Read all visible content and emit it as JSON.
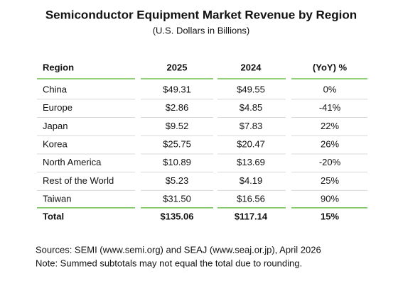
{
  "header": {
    "title": "Semiconductor Equipment Market Revenue by Region",
    "subtitle": "(U.S. Dollars in Billions)"
  },
  "table": {
    "columns": [
      "Region",
      "2025",
      "2024",
      "(YoY) %"
    ],
    "rows": [
      [
        "China",
        "$49.31",
        "$49.55",
        "0%"
      ],
      [
        "Europe",
        "$2.86",
        "$4.85",
        "-41%"
      ],
      [
        "Japan",
        "$9.52",
        "$7.83",
        "22%"
      ],
      [
        "Korea",
        "$25.75",
        "$20.47",
        "26%"
      ],
      [
        "North America",
        "$10.89",
        "$13.69",
        "-20%"
      ],
      [
        "Rest of the World",
        "$5.23",
        "$4.19",
        "25%"
      ],
      [
        "Taiwan",
        "$31.50",
        "$16.56",
        "90%"
      ]
    ],
    "total": [
      "Total",
      "$135.06",
      "$117.14",
      "15%"
    ]
  },
  "footnotes": [
    "Sources: SEMI (www.semi.org) and SEAJ (www.seaj.or.jp), April 2026",
    "Note: Summed subtotals may not equal the total due to rounding."
  ]
}
